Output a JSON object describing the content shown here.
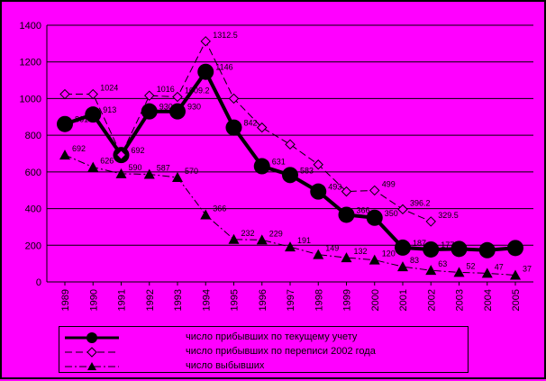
{
  "chart_data": {
    "type": "line",
    "x": [
      "1989",
      "1990",
      "1991",
      "1992",
      "1993",
      "1994",
      "1995",
      "1996",
      "1997",
      "1998",
      "1999",
      "2000",
      "2001",
      "2002",
      "2003",
      "2004",
      "2005"
    ],
    "ylim": [
      0,
      1400
    ],
    "yticks": [
      "0",
      "200",
      "400",
      "600",
      "800",
      "1000",
      "1200",
      "1400"
    ],
    "grid": "horizontal",
    "legend_position": "bottom",
    "series": [
      {
        "name": "число прибывших по текущему учету",
        "values": [
          861,
          913,
          692,
          930,
          930,
          1146,
          842,
          631,
          583,
          493,
          366,
          350,
          187,
          177,
          180,
          173,
          185
        ],
        "labels": [
          "861",
          "913",
          "692",
          "930",
          "930",
          "1146",
          "842",
          "631",
          "583",
          "493",
          "366",
          "350",
          "187",
          "177",
          "",
          "",
          ""
        ],
        "style": "solid-thick-circle",
        "color": "#000000"
      },
      {
        "name": "число прибывших по переписи 2002 года",
        "values": [
          1024,
          1024,
          693,
          1016,
          1009.2,
          1312.5,
          1000,
          842,
          750,
          640,
          493,
          499,
          396.2,
          329.5,
          null,
          null,
          null
        ],
        "labels": [
          "",
          "1024",
          "",
          "1016",
          "1009.2",
          "1312.5",
          "",
          "",
          "",
          "",
          "",
          "499",
          "396.2",
          "329.5",
          "",
          "",
          ""
        ],
        "style": "dashed-diamond",
        "color": "#000000"
      },
      {
        "name": "число выбывших",
        "values": [
          692,
          626,
          590,
          587,
          570,
          366,
          232,
          229,
          191,
          149,
          132,
          120,
          83,
          63,
          52,
          47,
          37
        ],
        "labels": [
          "692",
          "626",
          "590",
          "587",
          "570",
          "366",
          "232",
          "229",
          "191",
          "149",
          "132",
          "120",
          "83",
          "63",
          "52",
          "47",
          "37"
        ],
        "style": "dashdot-triangle",
        "color": "#000000"
      }
    ]
  },
  "legend": {
    "items": [
      "число прибывших по текущему учету",
      "число прибывших по переписи 2002 года",
      "число выбывших"
    ]
  }
}
